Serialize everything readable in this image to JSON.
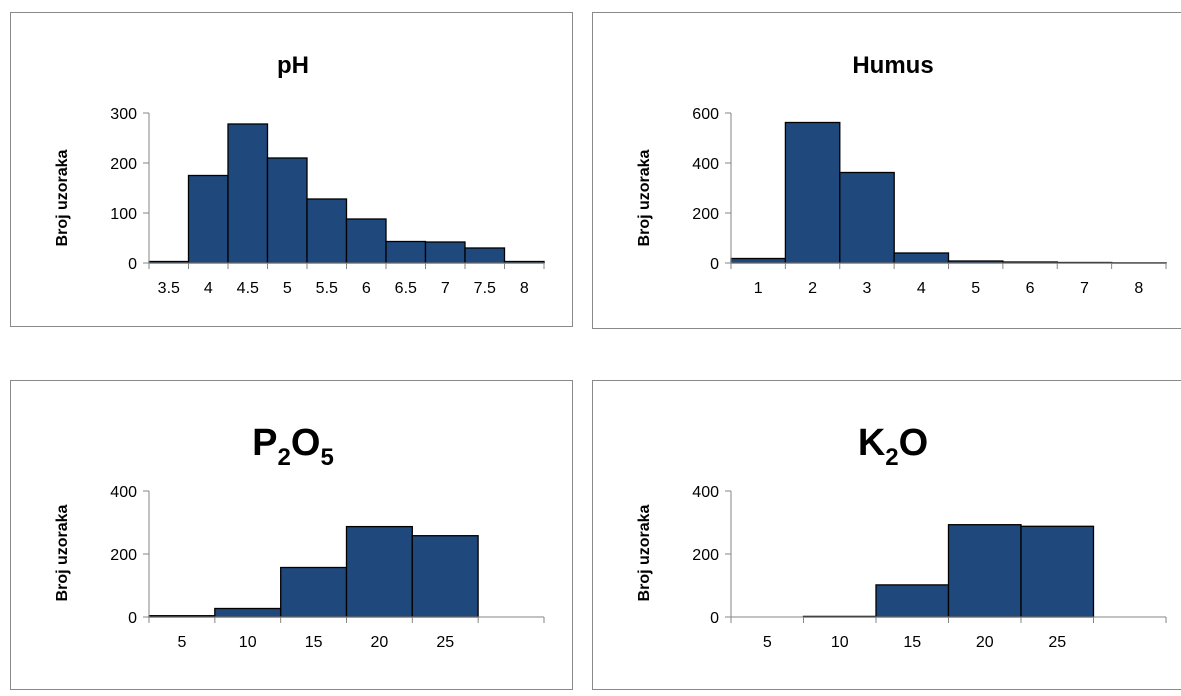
{
  "bar_color": "#1F497D",
  "bar_color_dark": "#17375E",
  "chart_data": [
    {
      "type": "bar",
      "title": "pH",
      "ylabel": "Broj uzoraka",
      "xlabel": "",
      "ylim": [
        0,
        300
      ],
      "yticks": [
        0,
        100,
        200,
        300
      ],
      "categories": [
        "3.5",
        "4",
        "4.5",
        "5",
        "5.5",
        "6",
        "6.5",
        "7",
        "7.5",
        "8"
      ],
      "values": [
        3,
        175,
        278,
        210,
        128,
        88,
        43,
        42,
        30,
        3
      ],
      "grid": false,
      "legend": "none"
    },
    {
      "type": "bar",
      "title": "Humus",
      "ylabel": "Broj uzoraka",
      "xlabel": "",
      "ylim": [
        0,
        600
      ],
      "yticks": [
        0,
        200,
        400,
        600
      ],
      "categories": [
        "1",
        "2",
        "3",
        "4",
        "5",
        "6",
        "7",
        "8"
      ],
      "values": [
        18,
        562,
        362,
        40,
        8,
        4,
        2,
        1
      ],
      "grid": false,
      "legend": "none"
    },
    {
      "type": "bar",
      "title": "P2O5",
      "title_main": "P",
      "title_sub1": "2",
      "title_mid": "O",
      "title_sub2": "5",
      "ylabel": "Broj uzoraka",
      "xlabel": "",
      "ylim": [
        0,
        400
      ],
      "yticks": [
        0,
        200,
        400
      ],
      "categories": [
        "5",
        "10",
        "15",
        "20",
        "25",
        ""
      ],
      "values": [
        4,
        27,
        157,
        287,
        258,
        0
      ],
      "grid": false,
      "legend": "none"
    },
    {
      "type": "bar",
      "title": "K2O",
      "title_main": "K",
      "title_sub1": "2",
      "title_mid": "O",
      "ylabel": "Broj uzoraka",
      "xlabel": "",
      "ylim": [
        0,
        400
      ],
      "yticks": [
        0,
        200,
        400
      ],
      "categories": [
        "5",
        "10",
        "15",
        "20",
        "25",
        ""
      ],
      "values": [
        0,
        2,
        102,
        293,
        288,
        0
      ],
      "grid": false,
      "legend": "none"
    }
  ]
}
